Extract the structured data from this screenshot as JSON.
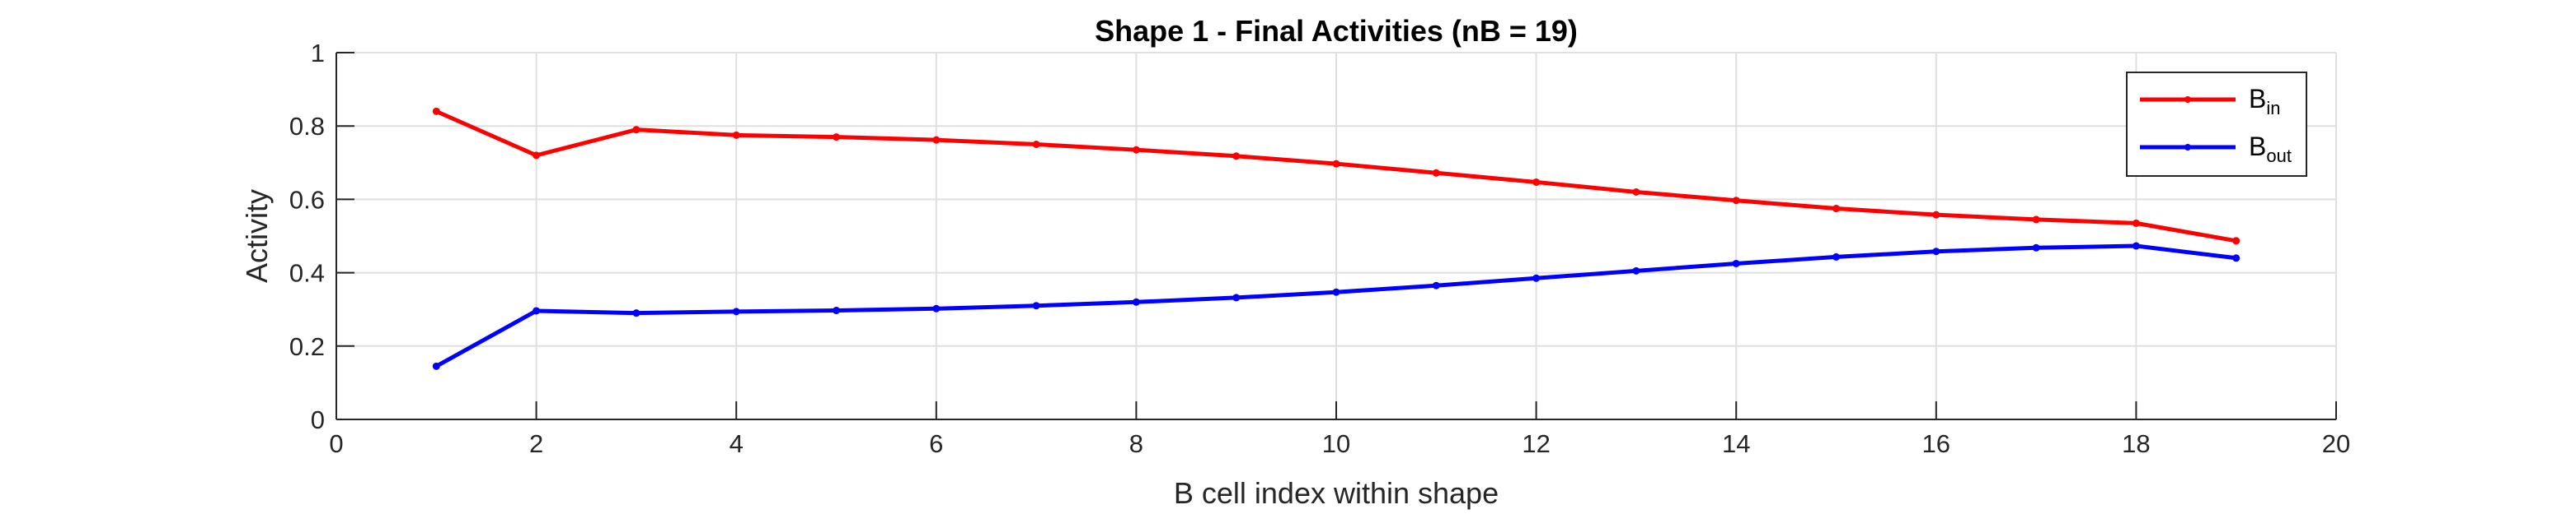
{
  "chart_data": {
    "type": "line",
    "title": "Shape 1 - Final Activities (nB = 19)",
    "xlabel": "B cell index within shape",
    "ylabel": "Activity",
    "xlim": [
      0,
      20
    ],
    "ylim": [
      0,
      1
    ],
    "xticks": [
      0,
      2,
      4,
      6,
      8,
      10,
      12,
      14,
      16,
      18,
      20
    ],
    "yticks": [
      0,
      0.2,
      0.4,
      0.6,
      0.8,
      1
    ],
    "grid": true,
    "legend_position": "top-right",
    "x": [
      1,
      2,
      3,
      4,
      5,
      6,
      7,
      8,
      9,
      10,
      11,
      12,
      13,
      14,
      15,
      16,
      17,
      18,
      19
    ],
    "series": [
      {
        "name": "B",
        "name_sub": "in",
        "color": "#ff0000",
        "values": [
          0.84,
          0.72,
          0.79,
          0.775,
          0.77,
          0.762,
          0.75,
          0.735,
          0.718,
          0.697,
          0.672,
          0.647,
          0.62,
          0.597,
          0.575,
          0.558,
          0.545,
          0.535,
          0.487
        ]
      },
      {
        "name": "B",
        "name_sub": "out",
        "color": "#0000ff",
        "values": [
          0.145,
          0.296,
          0.29,
          0.294,
          0.297,
          0.302,
          0.31,
          0.32,
          0.332,
          0.347,
          0.365,
          0.385,
          0.405,
          0.425,
          0.443,
          0.458,
          0.468,
          0.473,
          0.44
        ]
      }
    ]
  }
}
